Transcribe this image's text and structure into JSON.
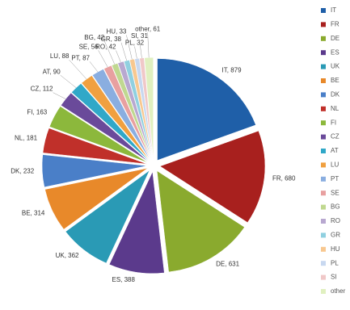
{
  "chart_data": {
    "type": "pie",
    "categories": [
      "IT",
      "FR",
      "DE",
      "ES",
      "UK",
      "BE",
      "DK",
      "NL",
      "FI",
      "CZ",
      "AT",
      "LU",
      "PT",
      "SE",
      "BG",
      "RO",
      "GR",
      "HU",
      "PL",
      "SI",
      "other"
    ],
    "values": [
      879,
      680,
      631,
      388,
      362,
      314,
      232,
      181,
      163,
      112,
      90,
      88,
      87,
      56,
      42,
      42,
      38,
      33,
      32,
      31,
      61
    ],
    "value_labels": [
      "IT, 879",
      "FR, 680",
      "DE, 631",
      "ES, 388",
      "UK, 362",
      "BE, 314",
      "DK, 232",
      "NL, 181",
      "FI, 163",
      "CZ, 112",
      "AT, 90",
      "LU, 88",
      "PT, 87",
      "SE, 56",
      "BG, 42",
      "RO, 42",
      "GR, 38",
      "HU, 33",
      "PL, 32",
      "SI, 31",
      "other, 61"
    ],
    "colors": [
      "#1f5fa8",
      "#a8201e",
      "#8aaa2e",
      "#5b3a8c",
      "#2a9ab5",
      "#e8892a",
      "#4a7fc8",
      "#c0302a",
      "#8cb83c",
      "#6a4a9a",
      "#30a8c8",
      "#f0a040",
      "#8aaee0",
      "#e8a0a0",
      "#c0d890",
      "#b8a8d0",
      "#90d0e0",
      "#f8c890",
      "#c8d8f0",
      "#f0c8c8",
      "#e0f0c0"
    ],
    "legend": "right"
  }
}
